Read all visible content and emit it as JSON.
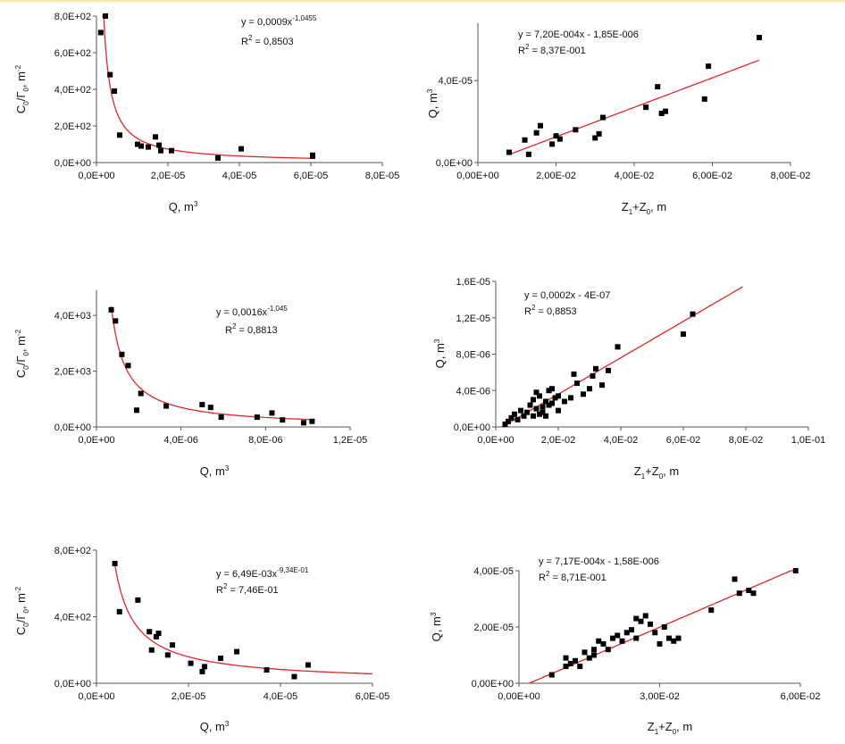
{
  "chart_data": [
    {
      "type": "scatter",
      "title": "",
      "ylabel": "C0/Γ0, m-2",
      "xlabel": "Q, m3",
      "xlim": [
        0,
        8e-05
      ],
      "ylim": [
        0,
        800
      ],
      "xticks": [
        "0,0E+00",
        "2,0E-05",
        "4,0E-05",
        "6,0E-05",
        "8,0E-05"
      ],
      "yticks": [
        "0,0E+00",
        "2,0E+02",
        "4,0E+02",
        "6,0E+02",
        "8,0E+02"
      ],
      "trend": {
        "kind": "power",
        "a": 0.0009,
        "b": -1.0455,
        "xmin": 1.5e-06,
        "xmax": 6.1e-05
      },
      "equation": "y = 0,0009x",
      "equation_exp": "-1,0455",
      "r2_label": "R",
      "r2_value": " = 0,8503",
      "x": [
        1.2e-06,
        2.5e-06,
        3.8e-06,
        5e-06,
        6.5e-06,
        1.15e-05,
        1.25e-05,
        1.45e-05,
        1.65e-05,
        1.75e-05,
        1.8e-05,
        2.1e-05,
        3.4e-05,
        4.05e-05,
        6.05e-05,
        6.05e-05
      ],
      "y": [
        710,
        800,
        480,
        390,
        150,
        100,
        90,
        85,
        140,
        95,
        65,
        65,
        25,
        75,
        35,
        40
      ]
    },
    {
      "type": "scatter",
      "title": "",
      "ylabel": "Q, m3",
      "xlabel": "Z1+Z0, m",
      "xlim": [
        0,
        0.08
      ],
      "ylim": [
        0,
        6.8e-05
      ],
      "xticks": [
        "0,00E+00",
        "2,00E-02",
        "4,00E-02",
        "6,00E-02",
        "8,00E-02"
      ],
      "yticks": [
        "0,0E+00",
        "4,0E-05"
      ],
      "ytick_values": [
        0,
        4e-05
      ],
      "trend": {
        "kind": "linear",
        "a": 0.00072,
        "b": -1.85e-06,
        "xmin": 0.008,
        "xmax": 0.072
      },
      "equation": "y = 7,20E-004x - 1,85E-006",
      "equation_exp": "",
      "r2_label": "R",
      "r2_value": " = 8,37E-001",
      "x": [
        0.008,
        0.012,
        0.013,
        0.015,
        0.016,
        0.019,
        0.02,
        0.021,
        0.025,
        0.03,
        0.031,
        0.032,
        0.043,
        0.046,
        0.047,
        0.048,
        0.058,
        0.059,
        0.072
      ],
      "y": [
        5e-06,
        1.1e-05,
        4e-06,
        1.45e-05,
        1.8e-05,
        9e-06,
        1.3e-05,
        1.15e-05,
        1.6e-05,
        1.2e-05,
        1.4e-05,
        2.2e-05,
        2.7e-05,
        3.7e-05,
        2.4e-05,
        2.5e-05,
        3.1e-05,
        4.7e-05,
        6.1e-05
      ]
    },
    {
      "type": "scatter",
      "title": "",
      "ylabel": "C0/Γ0, m-2",
      "xlabel": "Q, m3",
      "xlim": [
        0,
        1.2e-05
      ],
      "ylim": [
        0,
        4900
      ],
      "xticks": [
        "0,0E+00",
        "4,0E-06",
        "8,0E-06",
        "1,2E-05"
      ],
      "yticks": [
        "0,0E+00",
        "2,0E+03",
        "4,0E+03"
      ],
      "ytick_values": [
        0,
        2000,
        4000
      ],
      "trend": {
        "kind": "power",
        "a": 0.0016,
        "b": -1.045,
        "xmin": 7e-07,
        "xmax": 1.02e-05
      },
      "equation": "y = 0,0016x",
      "equation_exp": "-1,045",
      "r2_label": "R",
      "r2_value": " = 0,8813",
      "x": [
        7e-07,
        9e-07,
        1.2e-06,
        1.5e-06,
        1.9e-06,
        2.1e-06,
        3.3e-06,
        5e-06,
        5.4e-06,
        5.9e-06,
        7.6e-06,
        8.3e-06,
        8.8e-06,
        9.8e-06,
        1.02e-05
      ],
      "y": [
        4200,
        3800,
        2600,
        2200,
        600,
        1200,
        750,
        800,
        700,
        350,
        350,
        500,
        250,
        150,
        200
      ]
    },
    {
      "type": "scatter",
      "title": "",
      "ylabel": "Q, m3",
      "xlabel": "Z1+Z0, m",
      "xlim": [
        0,
        0.1
      ],
      "ylim": [
        0,
        1.6e-05
      ],
      "xticks": [
        "0,0E+00",
        "2,0E-02",
        "4,0E-02",
        "6,0E-02",
        "8,0E-02",
        "1,0E-01"
      ],
      "yticks": [
        "0,0E+00",
        "4,0E-06",
        "8,0E-06",
        "1,2E-05",
        "1,6E-05"
      ],
      "trend": {
        "kind": "linear",
        "a": 0.0002,
        "b": -4e-07,
        "xmin": 0.002,
        "xmax": 0.079
      },
      "equation": "y = 0,0002x - 4E-07",
      "equation_exp": "",
      "r2_label": "R",
      "r2_value": " = 0,8853",
      "x": [
        0.003,
        0.004,
        0.005,
        0.006,
        0.007,
        0.008,
        0.009,
        0.01,
        0.011,
        0.012,
        0.012,
        0.013,
        0.013,
        0.014,
        0.014,
        0.015,
        0.015,
        0.016,
        0.016,
        0.017,
        0.017,
        0.018,
        0.018,
        0.019,
        0.02,
        0.02,
        0.022,
        0.024,
        0.025,
        0.026,
        0.028,
        0.03,
        0.031,
        0.032,
        0.034,
        0.036,
        0.039,
        0.06,
        0.063
      ],
      "y": [
        3e-07,
        6e-07,
        1e-06,
        1.4e-06,
        8e-07,
        1.8e-06,
        1.2e-06,
        1.6e-06,
        2.4e-06,
        3e-06,
        1.2e-06,
        3.8e-06,
        2e-06,
        1.4e-06,
        3.4e-06,
        2.2e-06,
        1.6e-06,
        2.8e-06,
        1.2e-06,
        4e-06,
        2.4e-06,
        2.6e-06,
        4.2e-06,
        3.2e-06,
        1.8e-06,
        3.4e-06,
        2.8e-06,
        3.2e-06,
        5.8e-06,
        4.8e-06,
        3.6e-06,
        4.2e-06,
        5.6e-06,
        6.4e-06,
        4.6e-06,
        6.2e-06,
        8.8e-06,
        1.02e-05,
        1.24e-05
      ]
    },
    {
      "type": "scatter",
      "title": "",
      "ylabel": "C0/Γ0, m-2",
      "xlabel": "Q, m3",
      "xlim": [
        0,
        6e-05
      ],
      "ylim": [
        0,
        800
      ],
      "xticks": [
        "0,0E+00",
        "2,0E-05",
        "4,0E-05",
        "6,0E-05"
      ],
      "yticks": [
        "0,0E+00",
        "4,0E+02",
        "8,0E+02"
      ],
      "ytick_values": [
        0,
        400,
        800
      ],
      "trend": {
        "kind": "power",
        "a": 0.00649,
        "b": -0.934,
        "xmin": 4e-06,
        "xmax": 6e-05
      },
      "equation": "y = 6,49E-03x",
      "equation_exp": "-9,34E-01",
      "r2_label": "R",
      "r2_value": " = 7,46E-01",
      "x": [
        4e-06,
        5e-06,
        9e-06,
        1.15e-05,
        1.2e-05,
        1.3e-05,
        1.35e-05,
        1.55e-05,
        1.65e-05,
        2.05e-05,
        2.3e-05,
        2.35e-05,
        2.7e-05,
        3.05e-05,
        3.7e-05,
        4.3e-05,
        4.6e-05
      ],
      "y": [
        720,
        430,
        500,
        310,
        200,
        280,
        300,
        170,
        230,
        120,
        70,
        100,
        150,
        190,
        80,
        40,
        110
      ]
    },
    {
      "type": "scatter",
      "title": "",
      "ylabel": "Q, m3",
      "xlabel": "Z1+Z0, m",
      "xlim": [
        0,
        0.06
      ],
      "ylim": [
        0,
        4e-05
      ],
      "xticks": [
        "0,00E+00",
        "3,00E-02",
        "6,00E-02"
      ],
      "yticks": [
        "0,00E+00",
        "2,00E-05",
        "4,00E-05"
      ],
      "trend": {
        "kind": "linear",
        "a": 0.000717,
        "b": -1.58e-06,
        "xmin": 0.0022,
        "xmax": 0.059
      },
      "equation": "y = 7,17E-004x - 1,58E-006",
      "equation_exp": "",
      "r2_label": "R",
      "r2_value": " = 8,71E-001",
      "x": [
        0.007,
        0.01,
        0.01,
        0.011,
        0.012,
        0.013,
        0.014,
        0.015,
        0.016,
        0.016,
        0.017,
        0.018,
        0.019,
        0.02,
        0.021,
        0.022,
        0.023,
        0.024,
        0.025,
        0.025,
        0.026,
        0.027,
        0.028,
        0.029,
        0.03,
        0.031,
        0.032,
        0.033,
        0.034,
        0.041,
        0.046,
        0.047,
        0.049,
        0.05,
        0.059
      ],
      "y": [
        3e-06,
        6e-06,
        9e-06,
        7e-06,
        8e-06,
        6e-06,
        1.1e-05,
        9e-06,
        1e-05,
        1.2e-05,
        1.5e-05,
        1.4e-05,
        1.2e-05,
        1.6e-05,
        1.7e-05,
        1.5e-05,
        1.8e-05,
        1.9e-05,
        1.6e-05,
        2.3e-05,
        2.2e-05,
        2.4e-05,
        2.1e-05,
        1.8e-05,
        1.4e-05,
        2e-05,
        1.6e-05,
        1.5e-05,
        1.6e-05,
        2.6e-05,
        3.7e-05,
        3.2e-05,
        3.3e-05,
        3.2e-05,
        4e-05
      ]
    }
  ]
}
